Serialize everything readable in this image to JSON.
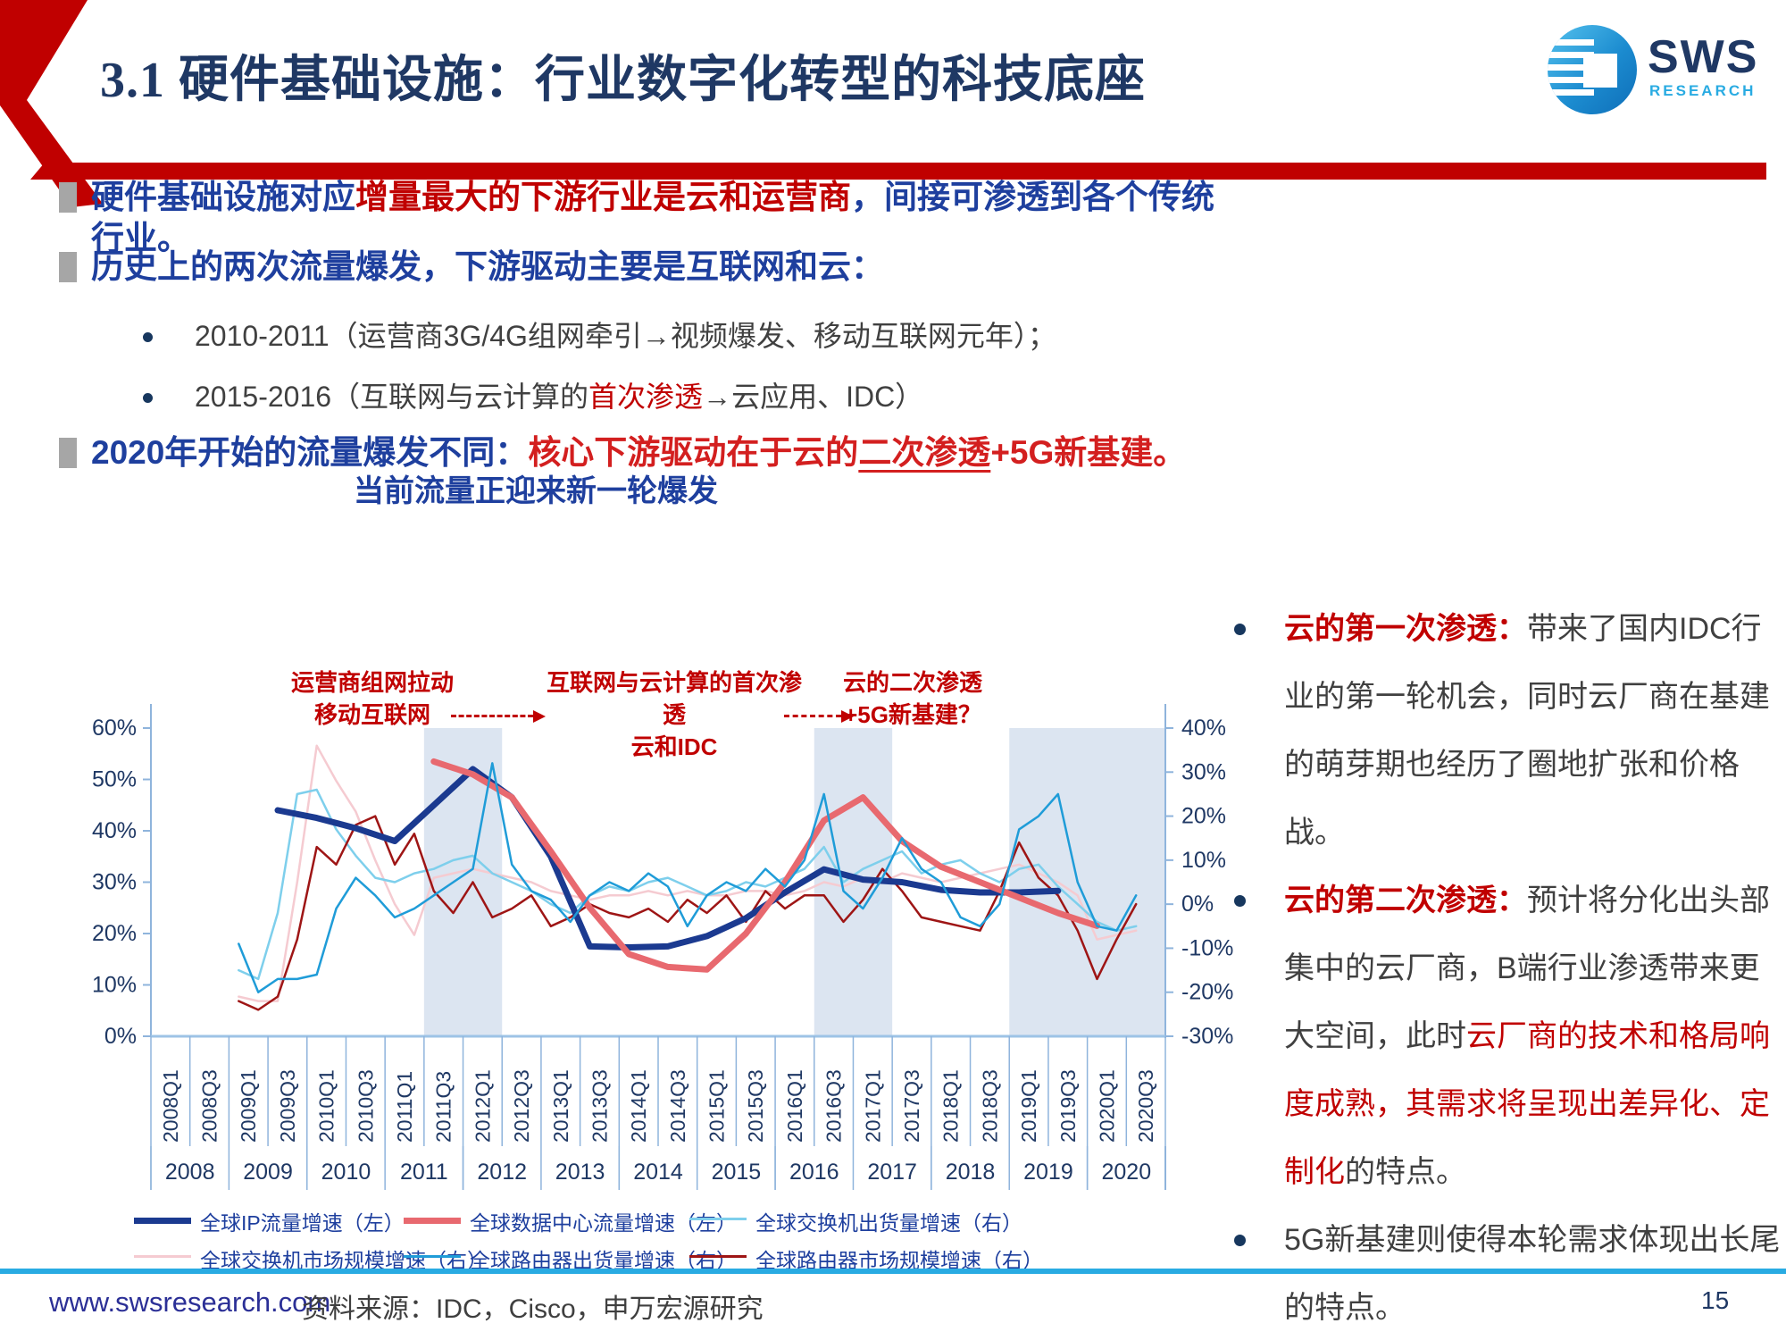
{
  "header": {
    "title": "3.1 硬件基础设施：行业数字化转型的科技底座"
  },
  "logo": {
    "text": "SWS",
    "subtext": "RESEARCH"
  },
  "bullets": [
    {
      "type": "main",
      "segments": [
        {
          "text": "硬件基础设施对应",
          "color": "blue"
        },
        {
          "text": "增量最大的下游行业是云和运营商",
          "color": "red"
        },
        {
          "text": "，间接可渗透到各个传统行业。",
          "color": "blue"
        }
      ]
    },
    {
      "type": "main",
      "segments": [
        {
          "text": "历史上的两次流量爆发，下游驱动主要是互联网和云：",
          "color": "blue"
        }
      ]
    },
    {
      "type": "sub",
      "segments": [
        {
          "text": "2010-2011（运营商3G/4G组网牵引→视频爆发、移动互联网元年）；",
          "color": "gray"
        }
      ]
    },
    {
      "type": "sub",
      "segments": [
        {
          "text": "2015-2016（互联网与云计算的",
          "color": "gray"
        },
        {
          "text": "首次渗透",
          "color": "red"
        },
        {
          "text": "→云应用、IDC）",
          "color": "gray"
        }
      ]
    },
    {
      "type": "main",
      "segments": [
        {
          "text": "2020年开始的流量爆发不同：",
          "color": "blue"
        },
        {
          "text": "核心下游驱动在于云的",
          "color": "red2"
        },
        {
          "text": "二次渗透",
          "color": "red2",
          "underline": true
        },
        {
          "text": "+5G新基建。",
          "color": "red2"
        }
      ]
    }
  ],
  "chart": {
    "title": "当前流量正迎来新一轮爆发",
    "annotations": [
      {
        "lines": [
          "运营商组网拉动",
          "移动互联网"
        ]
      },
      {
        "lines": [
          "互联网与云计算的首次渗透",
          "云和IDC"
        ]
      },
      {
        "lines": [
          "云的二次渗透",
          "+5G新基建？"
        ]
      }
    ],
    "left_axis_ticks": [
      "60%",
      "50%",
      "40%",
      "30%",
      "20%",
      "10%",
      "0%"
    ],
    "right_axis_ticks": [
      "40%",
      "30%",
      "20%",
      "10%",
      "0%",
      "-10%",
      "-20%",
      "-30%"
    ],
    "quarter_labels": [
      "2008Q1",
      "2008Q3",
      "2009Q1",
      "2009Q3",
      "2010Q1",
      "2010Q3",
      "2011Q1",
      "2011Q3",
      "2012Q1",
      "2012Q3",
      "2013Q1",
      "2013Q3",
      "2014Q1",
      "2014Q3",
      "2015Q1",
      "2015Q3",
      "2016Q1",
      "2016Q3",
      "2017Q1",
      "2017Q3",
      "2018Q1",
      "2018Q3",
      "2019Q1",
      "2019Q3",
      "2020Q1",
      "2020Q3"
    ],
    "year_labels": [
      "2008",
      "2009",
      "2010",
      "2011",
      "2012",
      "2013",
      "2014",
      "2015",
      "2016",
      "2017",
      "2018",
      "2019",
      "2020"
    ],
    "band_color": "#DCE5F1",
    "chart_data": {
      "type": "line",
      "x_quarters_start": "2008Q1",
      "x_quarters_end": "2020Q3",
      "left_axis_range": [
        0,
        60
      ],
      "right_axis_range": [
        -30,
        40
      ],
      "highlight_bands": [
        {
          "from": "2011Q3",
          "to": "2012Q2",
          "q_index": [
            14,
            18
          ]
        },
        {
          "from": "2016Q3",
          "to": "2017Q2",
          "q_index": [
            34,
            38
          ]
        },
        {
          "from": "2019Q1",
          "to": "2020Q4",
          "q_index": [
            44,
            52
          ]
        }
      ],
      "series": [
        {
          "name": "全球IP流量增速（左）",
          "axis": "left",
          "color": "#1B3A90",
          "width": 7,
          "values": [
            null,
            null,
            null,
            null,
            null,
            null,
            44,
            null,
            42.5,
            null,
            40.5,
            null,
            38,
            null,
            45,
            null,
            52,
            null,
            46.5,
            null,
            35,
            null,
            17.5,
            null,
            17.3,
            null,
            17.5,
            null,
            19.5,
            null,
            23,
            null,
            28,
            null,
            32.5,
            null,
            30.5,
            null,
            30,
            null,
            28.5,
            null,
            28,
            null,
            28,
            null,
            28.3,
            null,
            null,
            null,
            null
          ]
        },
        {
          "name": "全球数据中心流量增速（左）",
          "axis": "left",
          "color": "#E8696F",
          "width": 7,
          "values": [
            null,
            null,
            null,
            null,
            null,
            null,
            null,
            null,
            null,
            null,
            null,
            null,
            null,
            null,
            53.5,
            null,
            51,
            null,
            46.5,
            null,
            36,
            null,
            25,
            null,
            16,
            null,
            13.5,
            null,
            13,
            null,
            20,
            null,
            30,
            null,
            42,
            null,
            46.5,
            null,
            38,
            null,
            33,
            null,
            30,
            null,
            27,
            null,
            24,
            null,
            21.5,
            null,
            null
          ]
        },
        {
          "name": "全球交换机出货量增速（右）",
          "axis": "right",
          "color": "#7ECFEC",
          "width": 2.5,
          "values": [
            null,
            null,
            null,
            null,
            -15,
            -17,
            -2,
            25,
            26,
            17,
            11,
            6,
            5,
            7,
            8,
            10,
            11,
            7,
            5,
            3,
            0,
            -2,
            2,
            4,
            3,
            5,
            6,
            4,
            2,
            3,
            5,
            4,
            6,
            8,
            13,
            5,
            8,
            10,
            12,
            7,
            9,
            10,
            7,
            5,
            8,
            9,
            4,
            0,
            -4,
            -6,
            -5
          ]
        },
        {
          "name": "全球交换机市场规模增速（右）",
          "axis": "right",
          "color": "#F5CBD1",
          "width": 2.5,
          "values": [
            null,
            null,
            null,
            null,
            -21,
            -22,
            -22,
            5,
            36,
            28,
            21,
            10,
            0,
            -7,
            6,
            7,
            8,
            7,
            6,
            5,
            3,
            2,
            1,
            2,
            2,
            3,
            2,
            3,
            2,
            2,
            3,
            3,
            2,
            3,
            5,
            4,
            6,
            5,
            7,
            6,
            5,
            6,
            7,
            8,
            9,
            7,
            5,
            2,
            -8,
            -7,
            -6
          ]
        },
        {
          "name": "全球路由器出货量增速（右）",
          "axis": "right",
          "color": "#1F9CD8",
          "width": 2.5,
          "values": [
            null,
            null,
            null,
            null,
            -9,
            -20,
            -17,
            -17,
            -16,
            -1,
            6,
            2,
            -3,
            -1,
            2,
            5,
            8,
            32,
            9,
            3,
            1,
            -4,
            2,
            5,
            3,
            7,
            4,
            -5,
            2,
            5,
            3,
            8,
            4,
            10,
            25,
            3,
            -1,
            6,
            15,
            8,
            5,
            -3,
            -5,
            0,
            17,
            20,
            25,
            5,
            -5,
            -6,
            2
          ]
        },
        {
          "name": "全球路由器市场规模增速（右）",
          "axis": "right",
          "color": "#9E1515",
          "width": 2.5,
          "values": [
            null,
            null,
            null,
            null,
            -22,
            -24,
            -21,
            -8,
            13,
            9,
            18,
            20,
            9,
            16,
            3,
            -2,
            5,
            -3,
            -1,
            2,
            -5,
            -3,
            0,
            -2,
            -3,
            -1,
            -4,
            1,
            -2,
            2,
            -4,
            3,
            -1,
            2,
            2,
            -4,
            1,
            8,
            3,
            -3,
            -4,
            -5,
            -6,
            3,
            14,
            6,
            2,
            -6,
            -17,
            -8,
            0
          ]
        }
      ]
    },
    "legend_rows": [
      [
        0,
        1,
        2
      ],
      [
        3,
        4,
        5
      ]
    ]
  },
  "right_panel": {
    "bullets": [
      {
        "segments": [
          {
            "text": "云的第一次渗透：",
            "color": "red"
          },
          {
            "text": "带来了国内IDC行业的第一轮机会，同时云厂商在基建的萌芽期也经历了圈地扩张和价格战。",
            "color": "gray"
          }
        ]
      },
      {
        "segments": [
          {
            "text": "云的第二次渗透：",
            "color": "red"
          },
          {
            "text": "预计将分化出头部集中的云厂商，B端行业渗透带来更大空间，此时",
            "color": "gray"
          },
          {
            "text": "云厂商的技术和格局响度成熟，其需求将呈现出差异化、定制化",
            "color": "redlight"
          },
          {
            "text": "的特点。",
            "color": "gray"
          }
        ]
      },
      {
        "segments": [
          {
            "text": "5G新基建则使得本轮需求体现出长尾的特点。",
            "color": "gray"
          }
        ]
      }
    ]
  },
  "footer": {
    "url": "www.swsresearch.com",
    "source": "资料来源：IDC，Cisco，申万宏源研究",
    "page_number": "15"
  }
}
